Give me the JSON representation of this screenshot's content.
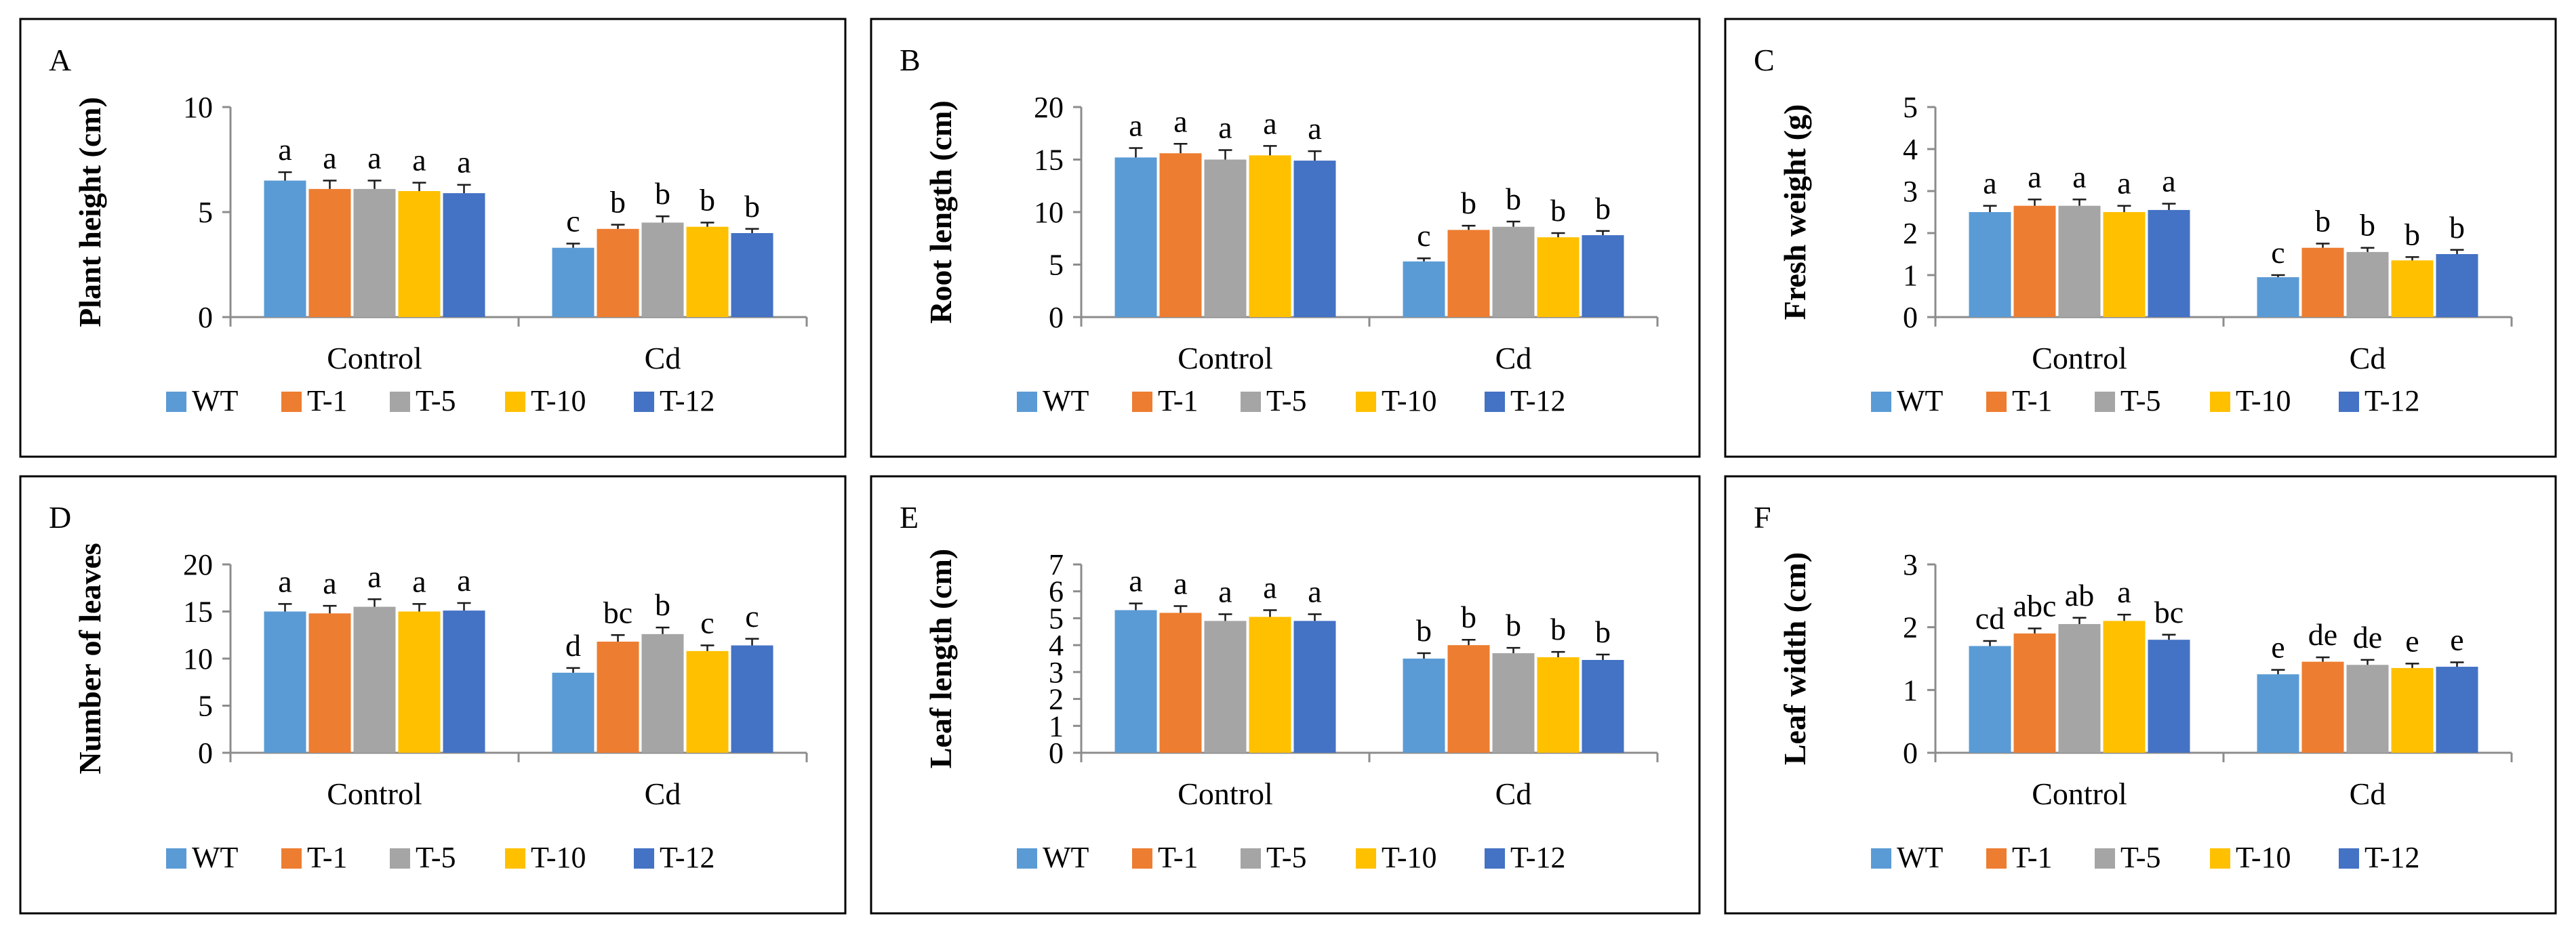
{
  "colors": {
    "WT": "#5b9bd5",
    "T-1": "#ed7d31",
    "T-5": "#a5a5a5",
    "T-10": "#ffc000",
    "T-12": "#4472c4",
    "errorbar": "#1a1a1a",
    "axis": "#8c8c8c",
    "frame": "#000000"
  },
  "chart_data": [
    {
      "panel": "A",
      "type": "bar",
      "ylabel": "Plant height (cm)",
      "ylim": [
        0,
        10
      ],
      "yticks": [
        0,
        5,
        10
      ],
      "categories": [
        "Control",
        "Cd"
      ],
      "series": [
        {
          "name": "WT",
          "values": [
            6.5,
            3.3
          ],
          "errors": [
            0.4,
            0.2
          ],
          "letters": [
            "a",
            "c"
          ]
        },
        {
          "name": "T-1",
          "values": [
            6.1,
            4.2
          ],
          "errors": [
            0.4,
            0.2
          ],
          "letters": [
            "a",
            "b"
          ]
        },
        {
          "name": "T-5",
          "values": [
            6.1,
            4.5
          ],
          "errors": [
            0.4,
            0.3
          ],
          "letters": [
            "a",
            "b"
          ]
        },
        {
          "name": "T-10",
          "values": [
            6.0,
            4.3
          ],
          "errors": [
            0.4,
            0.2
          ],
          "letters": [
            "a",
            "b"
          ]
        },
        {
          "name": "T-12",
          "values": [
            5.9,
            4.0
          ],
          "errors": [
            0.4,
            0.2
          ],
          "letters": [
            "a",
            "b"
          ]
        }
      ]
    },
    {
      "panel": "B",
      "type": "bar",
      "ylabel": "Root length (cm)",
      "ylim": [
        0,
        20
      ],
      "yticks": [
        0,
        5,
        10,
        15,
        20
      ],
      "categories": [
        "Control",
        "Cd"
      ],
      "series": [
        {
          "name": "WT",
          "values": [
            15.2,
            5.3
          ],
          "errors": [
            0.9,
            0.3
          ],
          "letters": [
            "a",
            "c"
          ]
        },
        {
          "name": "T-1",
          "values": [
            15.6,
            8.3
          ],
          "errors": [
            0.9,
            0.4
          ],
          "letters": [
            "a",
            "b"
          ]
        },
        {
          "name": "T-5",
          "values": [
            15.0,
            8.6
          ],
          "errors": [
            0.9,
            0.5
          ],
          "letters": [
            "a",
            "b"
          ]
        },
        {
          "name": "T-10",
          "values": [
            15.4,
            7.6
          ],
          "errors": [
            0.9,
            0.4
          ],
          "letters": [
            "a",
            "b"
          ]
        },
        {
          "name": "T-12",
          "values": [
            14.9,
            7.8
          ],
          "errors": [
            0.9,
            0.4
          ],
          "letters": [
            "a",
            "b"
          ]
        }
      ]
    },
    {
      "panel": "C",
      "type": "bar",
      "ylabel": "Fresh weight (g)",
      "ylim": [
        0,
        5
      ],
      "yticks": [
        0,
        1,
        2,
        3,
        4,
        5
      ],
      "categories": [
        "Control",
        "Cd"
      ],
      "series": [
        {
          "name": "WT",
          "values": [
            2.5,
            0.95
          ],
          "errors": [
            0.15,
            0.05
          ],
          "letters": [
            "a",
            "c"
          ]
        },
        {
          "name": "T-1",
          "values": [
            2.65,
            1.65
          ],
          "errors": [
            0.15,
            0.1
          ],
          "letters": [
            "a",
            "b"
          ]
        },
        {
          "name": "T-5",
          "values": [
            2.65,
            1.55
          ],
          "errors": [
            0.15,
            0.1
          ],
          "letters": [
            "a",
            "b"
          ]
        },
        {
          "name": "T-10",
          "values": [
            2.5,
            1.35
          ],
          "errors": [
            0.15,
            0.08
          ],
          "letters": [
            "a",
            "b"
          ]
        },
        {
          "name": "T-12",
          "values": [
            2.55,
            1.5
          ],
          "errors": [
            0.15,
            0.1
          ],
          "letters": [
            "a",
            "b"
          ]
        }
      ]
    },
    {
      "panel": "D",
      "type": "bar",
      "ylabel": "Number of leaves",
      "ylim": [
        0,
        20
      ],
      "yticks": [
        0,
        5,
        10,
        15,
        20
      ],
      "categories": [
        "Control",
        "Cd"
      ],
      "series": [
        {
          "name": "WT",
          "values": [
            15.0,
            8.5
          ],
          "errors": [
            0.8,
            0.5
          ],
          "letters": [
            "a",
            "d"
          ]
        },
        {
          "name": "T-1",
          "values": [
            14.8,
            11.8
          ],
          "errors": [
            0.8,
            0.7
          ],
          "letters": [
            "a",
            "bc"
          ]
        },
        {
          "name": "T-5",
          "values": [
            15.5,
            12.6
          ],
          "errors": [
            0.8,
            0.7
          ],
          "letters": [
            "a",
            "b"
          ]
        },
        {
          "name": "T-10",
          "values": [
            15.0,
            10.8
          ],
          "errors": [
            0.8,
            0.6
          ],
          "letters": [
            "a",
            "c"
          ]
        },
        {
          "name": "T-12",
          "values": [
            15.1,
            11.4
          ],
          "errors": [
            0.8,
            0.7
          ],
          "letters": [
            "a",
            "c"
          ]
        }
      ]
    },
    {
      "panel": "E",
      "type": "bar",
      "ylabel": "Leaf length (cm)",
      "ylim": [
        0,
        7
      ],
      "yticks": [
        0,
        1,
        2,
        3,
        4,
        5,
        6,
        7
      ],
      "categories": [
        "Control",
        "Cd"
      ],
      "series": [
        {
          "name": "WT",
          "values": [
            5.3,
            3.5
          ],
          "errors": [
            0.25,
            0.2
          ],
          "letters": [
            "a",
            "b"
          ]
        },
        {
          "name": "T-1",
          "values": [
            5.2,
            4.0
          ],
          "errors": [
            0.25,
            0.2
          ],
          "letters": [
            "a",
            "b"
          ]
        },
        {
          "name": "T-5",
          "values": [
            4.9,
            3.7
          ],
          "errors": [
            0.25,
            0.2
          ],
          "letters": [
            "a",
            "b"
          ]
        },
        {
          "name": "T-10",
          "values": [
            5.05,
            3.55
          ],
          "errors": [
            0.25,
            0.2
          ],
          "letters": [
            "a",
            "b"
          ]
        },
        {
          "name": "T-12",
          "values": [
            4.9,
            3.45
          ],
          "errors": [
            0.25,
            0.2
          ],
          "letters": [
            "a",
            "b"
          ]
        }
      ]
    },
    {
      "panel": "F",
      "type": "bar",
      "ylabel": "Leaf width (cm)",
      "ylim": [
        0,
        3
      ],
      "yticks": [
        0,
        1,
        2,
        3
      ],
      "categories": [
        "Control",
        "Cd"
      ],
      "series": [
        {
          "name": "WT",
          "values": [
            1.7,
            1.25
          ],
          "errors": [
            0.08,
            0.07
          ],
          "letters": [
            "cd",
            "e"
          ]
        },
        {
          "name": "T-1",
          "values": [
            1.9,
            1.45
          ],
          "errors": [
            0.08,
            0.07
          ],
          "letters": [
            "abc",
            "de"
          ]
        },
        {
          "name": "T-5",
          "values": [
            2.05,
            1.4
          ],
          "errors": [
            0.1,
            0.08
          ],
          "letters": [
            "ab",
            "de"
          ]
        },
        {
          "name": "T-10",
          "values": [
            2.1,
            1.35
          ],
          "errors": [
            0.1,
            0.07
          ],
          "letters": [
            "a",
            "e"
          ]
        },
        {
          "name": "T-12",
          "values": [
            1.8,
            1.37
          ],
          "errors": [
            0.08,
            0.07
          ],
          "letters": [
            "bc",
            "e"
          ]
        }
      ]
    }
  ]
}
